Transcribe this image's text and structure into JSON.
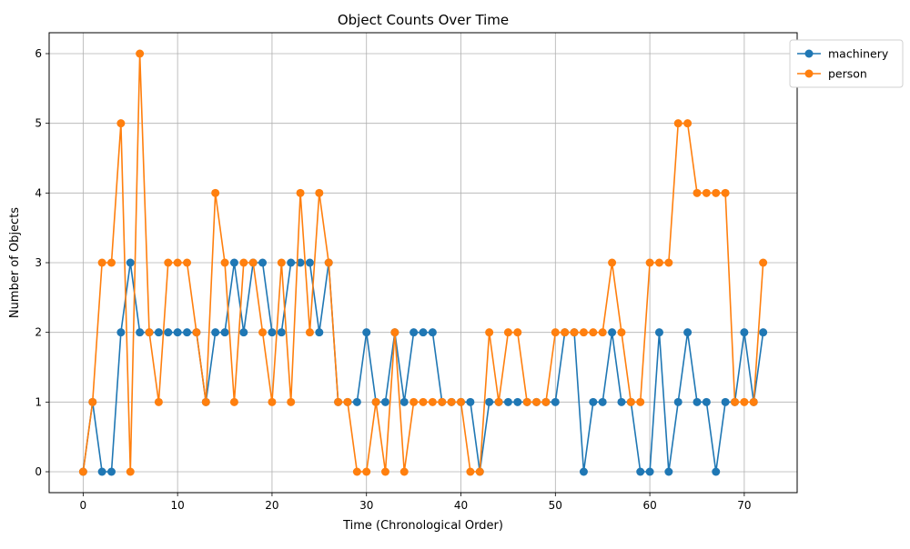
{
  "chart_data": {
    "type": "line",
    "title": "Object Counts Over Time",
    "xlabel": "Time (Chronological Order)",
    "ylabel": "Number of Objects",
    "xlim": [
      -3.6,
      75.6
    ],
    "ylim": [
      -0.3,
      6.3
    ],
    "xticks": [
      0,
      10,
      20,
      30,
      40,
      50,
      60,
      70
    ],
    "yticks": [
      0,
      1,
      2,
      3,
      4,
      5,
      6
    ],
    "grid": true,
    "legend_position": "outside-top-right",
    "x": [
      0,
      1,
      2,
      3,
      4,
      5,
      6,
      7,
      8,
      9,
      10,
      11,
      12,
      13,
      14,
      15,
      16,
      17,
      18,
      19,
      20,
      21,
      22,
      23,
      24,
      25,
      26,
      27,
      28,
      29,
      30,
      31,
      32,
      33,
      34,
      35,
      36,
      37,
      38,
      39,
      40,
      41,
      42,
      43,
      44,
      45,
      46,
      47,
      48,
      49,
      50,
      51,
      52,
      53,
      54,
      55,
      56,
      57,
      58,
      59,
      60,
      61,
      62,
      63,
      64,
      65,
      66,
      67,
      68,
      69,
      70,
      71,
      72
    ],
    "series": [
      {
        "name": "machinery",
        "color": "#1f77b4",
        "values": [
          0,
          1,
          0,
          0,
          2,
          3,
          2,
          2,
          2,
          2,
          2,
          2,
          2,
          1,
          2,
          2,
          3,
          2,
          3,
          3,
          2,
          2,
          3,
          3,
          3,
          2,
          3,
          1,
          1,
          1,
          2,
          1,
          1,
          2,
          1,
          2,
          2,
          2,
          1,
          1,
          1,
          1,
          0,
          1,
          1,
          1,
          1,
          1,
          1,
          1,
          1,
          2,
          2,
          0,
          1,
          1,
          2,
          1,
          1,
          0,
          0,
          2,
          0,
          1,
          2,
          1,
          1,
          0,
          1,
          1,
          2,
          1,
          2
        ]
      },
      {
        "name": "person",
        "color": "#ff7f0e",
        "values": [
          0,
          1,
          3,
          3,
          5,
          0,
          6,
          2,
          1,
          3,
          3,
          3,
          2,
          1,
          4,
          3,
          1,
          3,
          3,
          2,
          1,
          3,
          1,
          4,
          2,
          4,
          3,
          1,
          1,
          0,
          0,
          1,
          0,
          2,
          0,
          1,
          1,
          1,
          1,
          1,
          1,
          0,
          0,
          2,
          1,
          2,
          2,
          1,
          1,
          1,
          2,
          2,
          2,
          2,
          2,
          2,
          3,
          2,
          1,
          1,
          3,
          3,
          3,
          5,
          5,
          4,
          4,
          4,
          4,
          1,
          1,
          1,
          3
        ]
      }
    ]
  }
}
